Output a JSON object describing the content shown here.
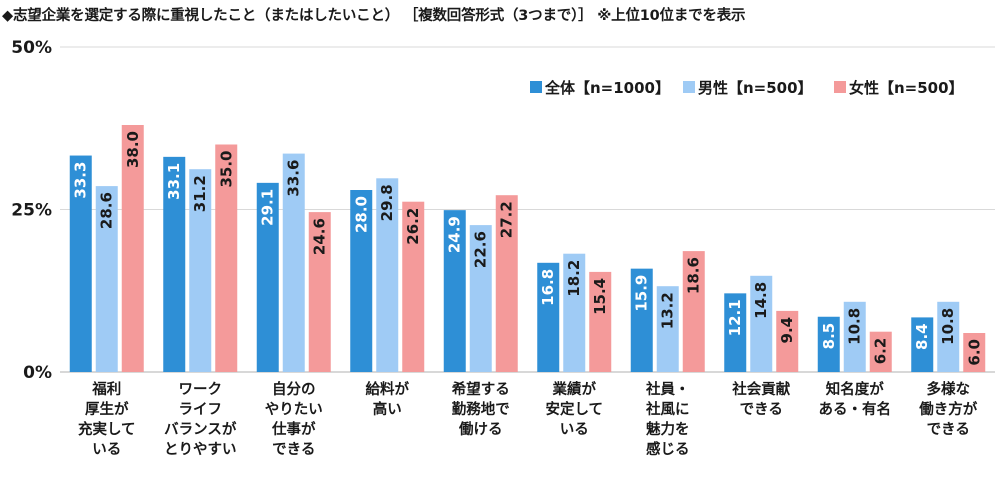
{
  "title": "◆志望企業を選定する際に重視したこと（またはしたいこと） ［複数回答形式（3つまで）］ ※上位10位までを表示",
  "chart_data": {
    "type": "bar",
    "title": "◆志望企業を選定する際に重視したこと（またはしたいこと） ［複数回答形式（3つまで）］ ※上位10位までを表示",
    "xlabel": "",
    "ylabel": "",
    "ylim": [
      0,
      50
    ],
    "yticks": [
      0,
      25,
      50
    ],
    "ytick_labels": [
      "0%",
      "25%",
      "50%"
    ],
    "grid": true,
    "legend_position": "top-right",
    "categories": [
      "福利\n厚生が\n充実して\nいる",
      "ワーク\nライフ\nバランスが\nとりやすい",
      "自分の\nやりたい\n仕事が\nできる",
      "給料が\n高い",
      "希望する\n勤務地で\n働ける",
      "業績が\n安定して\nいる",
      "社員・\n社風に\n魅力を\n感じる",
      "社会貢献\nできる",
      "知名度が\nある・有名",
      "多様な\n働き方が\nできる"
    ],
    "series": [
      {
        "name": "全体【n=1000】",
        "color": "#2e8fd6",
        "label_color": "#ffffff",
        "values": [
          33.3,
          33.1,
          29.1,
          28.0,
          24.9,
          16.8,
          15.9,
          12.1,
          8.5,
          8.4
        ]
      },
      {
        "name": "男性【n=500】",
        "color": "#9fcbf5",
        "label_color": "#1a1a1a",
        "values": [
          28.6,
          31.2,
          33.6,
          29.8,
          22.6,
          18.2,
          13.2,
          14.8,
          10.8,
          10.8
        ]
      },
      {
        "name": "女性【n=500】",
        "color": "#f49a9a",
        "label_color": "#1a1a1a",
        "values": [
          38.0,
          35.0,
          24.6,
          26.2,
          27.2,
          15.4,
          18.6,
          9.4,
          6.2,
          6.0
        ]
      }
    ]
  }
}
